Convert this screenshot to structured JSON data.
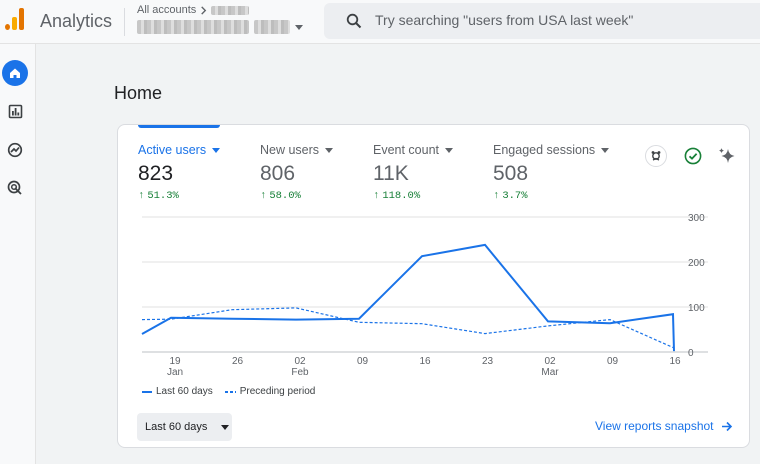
{
  "app": {
    "title": "Analytics",
    "brand_colors": [
      "#f9ab00",
      "#e37400"
    ]
  },
  "header": {
    "breadcrumb": "All accounts",
    "breadcrumb_icon": "chevron-right-icon",
    "search_placeholder": "Try searching \"users from USA last week\"",
    "search_icon": "search-icon"
  },
  "nav": {
    "items": [
      {
        "icon": "home-icon",
        "active": true
      },
      {
        "icon": "reports-icon",
        "active": false
      },
      {
        "icon": "explore-icon",
        "active": false
      },
      {
        "icon": "advertising-icon",
        "active": false
      }
    ]
  },
  "page": {
    "title": "Home"
  },
  "metrics": [
    {
      "label": "Active users",
      "value": "823",
      "change": "51.3%",
      "active": true
    },
    {
      "label": "New users",
      "value": "806",
      "change": "58.0%",
      "active": false
    },
    {
      "label": "Event count",
      "value": "11K",
      "change": "118.0%",
      "active": false
    },
    {
      "label": "Engaged sessions",
      "value": "508",
      "change": "3.7%",
      "active": false
    }
  ],
  "insight_icons": [
    "insights-badge-icon",
    "check-circle-icon",
    "sparkle-icon"
  ],
  "chart_data": {
    "type": "line",
    "x_ticks": [
      {
        "top": "19",
        "bottom": "Jan"
      },
      {
        "top": "26",
        "bottom": ""
      },
      {
        "top": "02",
        "bottom": "Feb"
      },
      {
        "top": "09",
        "bottom": ""
      },
      {
        "top": "16",
        "bottom": ""
      },
      {
        "top": "23",
        "bottom": ""
      },
      {
        "top": "02",
        "bottom": "Mar"
      },
      {
        "top": "09",
        "bottom": ""
      },
      {
        "top": "16",
        "bottom": ""
      }
    ],
    "y_ticks": [
      "300",
      "200",
      "100",
      "0"
    ],
    "ylim": [
      0,
      300
    ],
    "grid": true,
    "series": [
      {
        "name": "Last 60 days",
        "style": "solid",
        "color": "#1a73e8",
        "values": [
          40,
          76,
          74,
          72,
          74,
          213,
          238,
          68,
          64,
          84,
          2
        ]
      },
      {
        "name": "Preceding period",
        "style": "dashed",
        "color": "#1a73e8",
        "values": [
          72,
          73,
          94,
          98,
          66,
          63,
          41,
          58,
          72,
          10
        ]
      }
    ]
  },
  "footer": {
    "range_label": "Last 60 days",
    "snapshot_link": "View reports snapshot"
  }
}
